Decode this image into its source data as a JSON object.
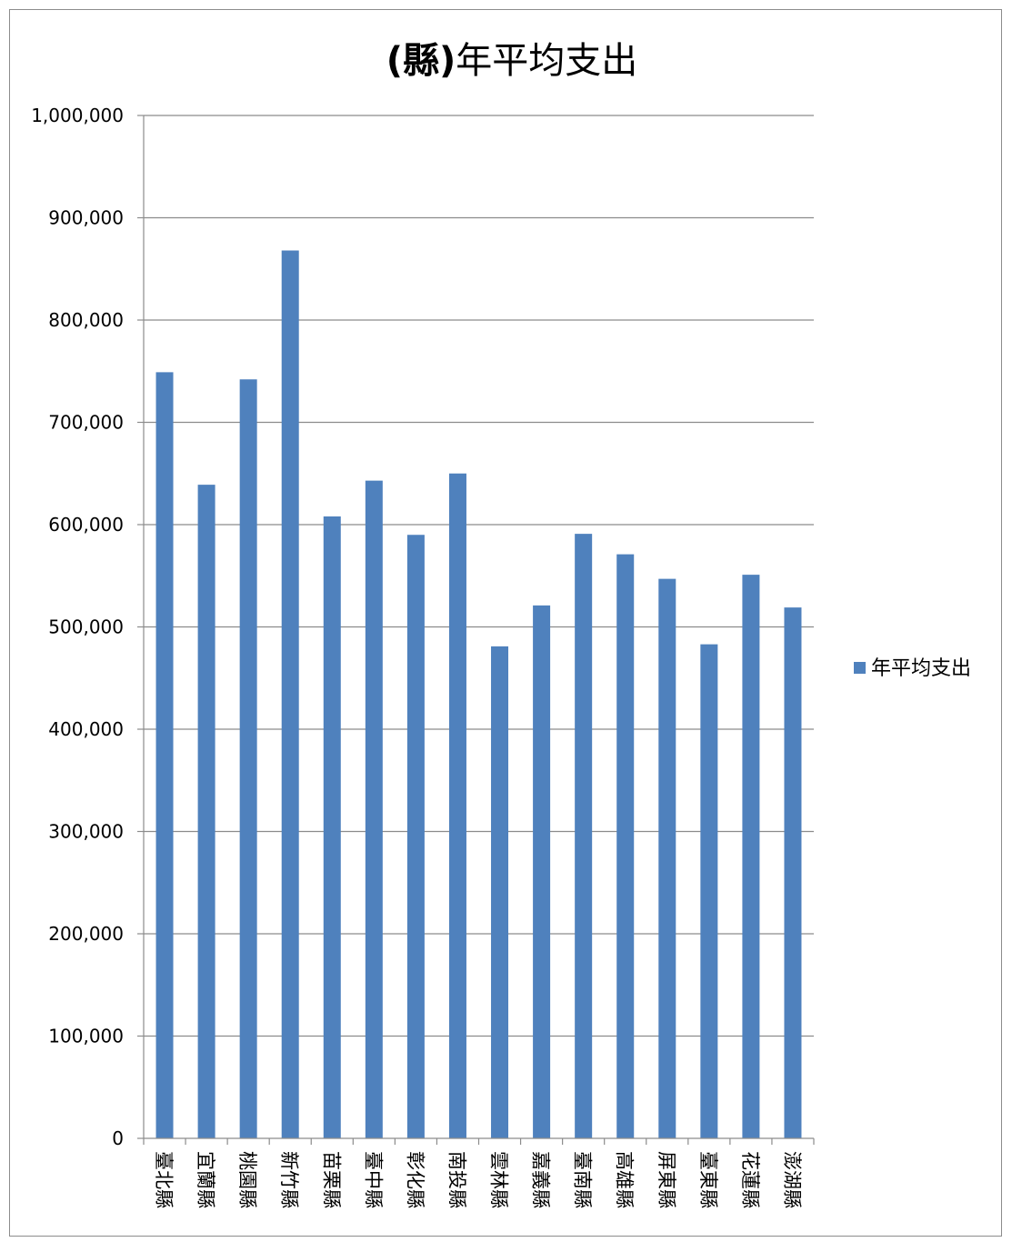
{
  "chart_data": {
    "type": "bar",
    "title_bold": "(縣)",
    "title_rest": "年平均支出",
    "categories": [
      "臺北縣",
      "宜蘭縣",
      "桃園縣",
      "新竹縣",
      "苗栗縣",
      "臺中縣",
      "彰化縣",
      "南投縣",
      "雲林縣",
      "嘉義縣",
      "臺南縣",
      "高雄縣",
      "屏東縣",
      "臺東縣",
      "花蓮縣",
      "澎湖縣"
    ],
    "series": [
      {
        "name": "年平均支出",
        "color": "#4F81BD",
        "values": [
          749000,
          639000,
          742000,
          868000,
          608000,
          643000,
          590000,
          650000,
          481000,
          521000,
          591000,
          571000,
          547000,
          483000,
          551000,
          519000
        ]
      }
    ],
    "ylim": [
      0,
      1000000
    ],
    "yticks": [
      0,
      100000,
      200000,
      300000,
      400000,
      500000,
      600000,
      700000,
      800000,
      900000,
      1000000
    ],
    "ytick_labels": [
      "0",
      "100,000",
      "200,000",
      "300,000",
      "400,000",
      "500,000",
      "600,000",
      "700,000",
      "800,000",
      "900,000",
      "1,000,000"
    ],
    "grid": true,
    "legend_position": "right"
  }
}
